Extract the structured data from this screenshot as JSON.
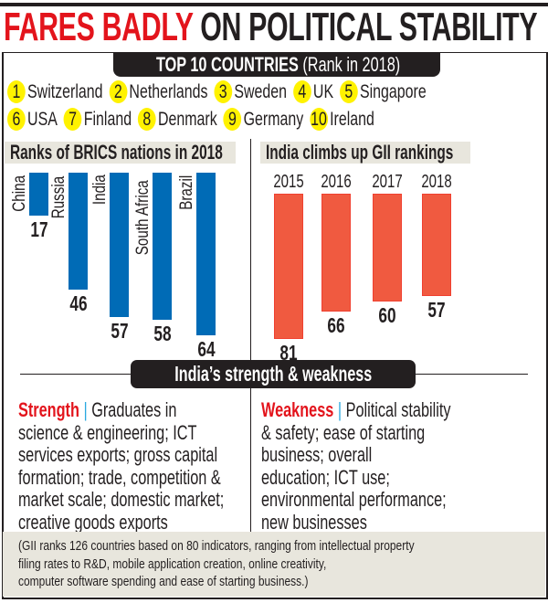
{
  "title": {
    "red": "FARES BADLY",
    "black": "ON POLITICAL STABILITY"
  },
  "top10": {
    "heading": "TOP 10 COUNTRIES",
    "subheading": "(Rank in 2018)",
    "items": [
      {
        "rank": "1",
        "name": "Switzerland"
      },
      {
        "rank": "2",
        "name": "Netherlands"
      },
      {
        "rank": "3",
        "name": "Sweden"
      },
      {
        "rank": "4",
        "name": "UK"
      },
      {
        "rank": "5",
        "name": "Singapore"
      },
      {
        "rank": "6",
        "name": "USA"
      },
      {
        "rank": "7",
        "name": "Finland"
      },
      {
        "rank": "8",
        "name": "Denmark"
      },
      {
        "rank": "9",
        "name": "Germany"
      },
      {
        "rank": "10",
        "name": "Ireland"
      }
    ]
  },
  "chart_data": [
    {
      "type": "bar",
      "title": "Ranks of BRICS nations in 2018",
      "categories": [
        "China",
        "Russia",
        "India",
        "South Africa",
        "Brazil"
      ],
      "values": [
        17,
        46,
        57,
        58,
        64
      ],
      "orientation": "vertical-downward",
      "color": "#006bb6"
    },
    {
      "type": "bar",
      "title": "India climbs up GII rankings",
      "categories": [
        "2015",
        "2016",
        "2017",
        "2018"
      ],
      "values": [
        81,
        66,
        60,
        57
      ],
      "orientation": "vertical-downward",
      "color": "#f05a40"
    }
  ],
  "sw": {
    "heading": "India’s strength & weakness",
    "strength": {
      "label": "Strength",
      "sep": "|",
      "lines": [
        " Graduates in",
        "science & engineering; ICT",
        "services exports; gross capital",
        "formation; trade, competition &",
        "market scale; domestic market;",
        "creative goods exports"
      ]
    },
    "weakness": {
      "label": "Weakness",
      "sep": "|",
      "lines": [
        " Political stability",
        "& safety; ease of starting",
        "business; overall",
        "education; ICT use;",
        "environmental performance;",
        "new businesses"
      ]
    }
  },
  "footnote": [
    "(GII ranks 126 countries based on 80 indicators, ranging from intellectual property",
    "filing rates to R&D, mobile application creation, online creativity,",
    "computer software spending and ease of starting business.)"
  ]
}
